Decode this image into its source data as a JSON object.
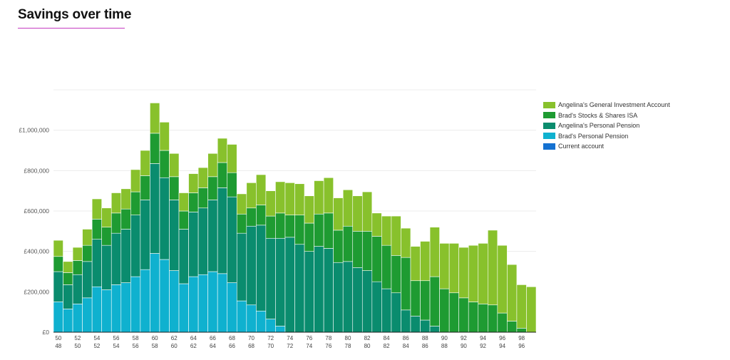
{
  "page": {
    "title": "Savings over time"
  },
  "chart_data": {
    "type": "bar",
    "stacked": true,
    "title": "",
    "xlabel": "",
    "ylabel": "",
    "ylim": [
      0,
      1200000
    ],
    "y_ticks": [
      "£0",
      "£200,000",
      "£400,000",
      "£600,000",
      "£800,000",
      "£1,000,000"
    ],
    "categories": [
      "50/48",
      "51/49",
      "52/50",
      "53/51",
      "54/52",
      "55/53",
      "56/54",
      "57/55",
      "58/56",
      "59/57",
      "60/58",
      "61/59",
      "62/60",
      "63/61",
      "64/62",
      "65/63",
      "66/64",
      "67/65",
      "68/66",
      "69/67",
      "70/68",
      "71/69",
      "72/70",
      "73/71",
      "74/72",
      "75/73",
      "76/74",
      "77/75",
      "78/76",
      "79/77",
      "80/78",
      "81/79",
      "82/80",
      "83/81",
      "84/82",
      "85/83",
      "86/84",
      "87/85",
      "88/86",
      "89/87",
      "90/88",
      "91/89",
      "92/90",
      "93/91",
      "94/92",
      "95/93",
      "96/94",
      "97/95",
      "98/96",
      "99/97"
    ],
    "x_tick_labels": [
      {
        "index": 0,
        "top": "50",
        "bottom": "48"
      },
      {
        "index": 2,
        "top": "52",
        "bottom": "50"
      },
      {
        "index": 4,
        "top": "54",
        "bottom": "52"
      },
      {
        "index": 6,
        "top": "56",
        "bottom": "54"
      },
      {
        "index": 8,
        "top": "58",
        "bottom": "56"
      },
      {
        "index": 10,
        "top": "60",
        "bottom": "58"
      },
      {
        "index": 12,
        "top": "62",
        "bottom": "60"
      },
      {
        "index": 14,
        "top": "64",
        "bottom": "62"
      },
      {
        "index": 16,
        "top": "66",
        "bottom": "64"
      },
      {
        "index": 18,
        "top": "68",
        "bottom": "66"
      },
      {
        "index": 20,
        "top": "70",
        "bottom": "68"
      },
      {
        "index": 22,
        "top": "72",
        "bottom": "70"
      },
      {
        "index": 24,
        "top": "74",
        "bottom": "72"
      },
      {
        "index": 26,
        "top": "76",
        "bottom": "74"
      },
      {
        "index": 28,
        "top": "78",
        "bottom": "76"
      },
      {
        "index": 30,
        "top": "80",
        "bottom": "78"
      },
      {
        "index": 32,
        "top": "82",
        "bottom": "80"
      },
      {
        "index": 34,
        "top": "84",
        "bottom": "82"
      },
      {
        "index": 36,
        "top": "86",
        "bottom": "84"
      },
      {
        "index": 38,
        "top": "88",
        "bottom": "86"
      },
      {
        "index": 40,
        "top": "90",
        "bottom": "88"
      },
      {
        "index": 42,
        "top": "92",
        "bottom": "90"
      },
      {
        "index": 44,
        "top": "94",
        "bottom": "92"
      },
      {
        "index": 46,
        "top": "96",
        "bottom": "94"
      },
      {
        "index": 48,
        "top": "98",
        "bottom": "96"
      }
    ],
    "grid": true,
    "legend_position": "right",
    "series": [
      {
        "name": "Brad's Personal Pension",
        "color": "#0fb1cf",
        "values": [
          150000,
          115000,
          140000,
          170000,
          225000,
          210000,
          235000,
          245000,
          275000,
          310000,
          390000,
          360000,
          305000,
          240000,
          275000,
          285000,
          300000,
          290000,
          245000,
          155000,
          135000,
          105000,
          65000,
          30000,
          0,
          0,
          0,
          0,
          0,
          0,
          0,
          0,
          0,
          0,
          0,
          0,
          0,
          0,
          0,
          0,
          0,
          0,
          0,
          0,
          0,
          0,
          0,
          0,
          0,
          0
        ]
      },
      {
        "name": "Angelina's Personal Pension",
        "color": "#0a8c6e",
        "values": [
          150000,
          120000,
          145000,
          180000,
          235000,
          220000,
          255000,
          265000,
          305000,
          345000,
          445000,
          405000,
          350000,
          270000,
          320000,
          330000,
          355000,
          425000,
          425000,
          335000,
          390000,
          425000,
          400000,
          435000,
          470000,
          435000,
          400000,
          425000,
          415000,
          345000,
          350000,
          320000,
          305000,
          250000,
          215000,
          195000,
          110000,
          80000,
          60000,
          30000,
          0,
          0,
          0,
          0,
          0,
          0,
          0,
          0,
          0,
          0
        ]
      },
      {
        "name": "Brad's Stocks & Shares ISA",
        "color": "#1e9b32",
        "values": [
          75000,
          60000,
          70000,
          80000,
          100000,
          90000,
          100000,
          100000,
          115000,
          120000,
          150000,
          135000,
          115000,
          90000,
          95000,
          100000,
          115000,
          125000,
          120000,
          95000,
          90000,
          100000,
          110000,
          125000,
          110000,
          145000,
          140000,
          160000,
          175000,
          160000,
          175000,
          180000,
          195000,
          225000,
          215000,
          185000,
          260000,
          175000,
          195000,
          245000,
          215000,
          195000,
          170000,
          150000,
          140000,
          135000,
          95000,
          55000,
          20000,
          0
        ]
      },
      {
        "name": "Angelina's General Investment Account",
        "color": "#88c12c",
        "values": [
          80000,
          55000,
          65000,
          80000,
          100000,
          95000,
          100000,
          100000,
          110000,
          125000,
          150000,
          140000,
          115000,
          90000,
          95000,
          100000,
          115000,
          120000,
          140000,
          100000,
          125000,
          150000,
          125000,
          155000,
          160000,
          155000,
          135000,
          165000,
          175000,
          160000,
          180000,
          175000,
          195000,
          115000,
          145000,
          195000,
          145000,
          170000,
          195000,
          245000,
          225000,
          245000,
          250000,
          280000,
          300000,
          370000,
          335000,
          280000,
          215000,
          225000
        ]
      },
      {
        "name": "Current account",
        "color": "#1471d1",
        "values": [
          0,
          0,
          0,
          0,
          0,
          0,
          0,
          0,
          0,
          0,
          0,
          0,
          0,
          0,
          0,
          0,
          0,
          0,
          0,
          0,
          0,
          0,
          0,
          0,
          0,
          0,
          0,
          0,
          0,
          0,
          0,
          0,
          0,
          0,
          0,
          0,
          0,
          0,
          0,
          0,
          0,
          0,
          0,
          0,
          0,
          0,
          0,
          0,
          0,
          0
        ]
      }
    ],
    "legend_order": [
      3,
      2,
      1,
      0,
      4
    ]
  }
}
